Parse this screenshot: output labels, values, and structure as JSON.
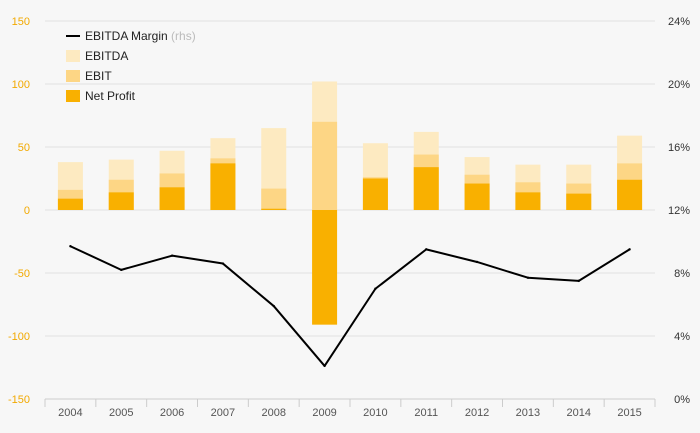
{
  "colors": {
    "background": "#f7f7f7",
    "ebitda": "#fdeac1",
    "ebit": "#fdd685",
    "net_profit": "#f9b000",
    "margin_line": "#000000",
    "left_axis_text": "#f2a900",
    "right_axis_text": "#333333",
    "x_axis_text": "#555555",
    "grid": "#e2e2e2",
    "rhs_hint": "#bbbbbb"
  },
  "legend": {
    "margin": "EBITDA Margin",
    "margin_suffix": "(rhs)",
    "ebitda": "EBITDA",
    "ebit": "EBIT",
    "net_profit": "Net Profit"
  },
  "chart_data": {
    "type": "bar",
    "categories": [
      "2004",
      "2005",
      "2006",
      "2007",
      "2008",
      "2009",
      "2010",
      "2011",
      "2012",
      "2013",
      "2014",
      "2015"
    ],
    "series": [
      {
        "name": "EBITDA",
        "kind": "bar",
        "axis": "left",
        "values": [
          38,
          40,
          47,
          57,
          65,
          102,
          53,
          62,
          42,
          36,
          36,
          59
        ]
      },
      {
        "name": "EBIT",
        "kind": "bar",
        "axis": "left",
        "values": [
          16,
          24,
          29,
          41,
          17,
          70,
          26,
          44,
          28,
          22,
          21,
          37
        ]
      },
      {
        "name": "Net Profit",
        "kind": "bar",
        "axis": "left",
        "values": [
          9,
          14,
          18,
          37,
          1,
          -91,
          25,
          34,
          21,
          14,
          13,
          24
        ]
      },
      {
        "name": "EBITDA Margin",
        "kind": "line",
        "axis": "right",
        "values": [
          9.7,
          8.2,
          9.1,
          8.6,
          5.9,
          2.1,
          7.0,
          9.5,
          8.7,
          7.7,
          7.5,
          9.5
        ]
      }
    ],
    "y_left": {
      "min": -150,
      "max": 150,
      "ticks": [
        150,
        100,
        50,
        0,
        -50,
        -100,
        -150
      ]
    },
    "y_right": {
      "min": 0,
      "max": 24,
      "ticks": [
        "24%",
        "20%",
        "16%",
        "12%",
        "8%",
        "4%",
        "0%"
      ]
    },
    "grid": true,
    "legend_position": "top-left"
  }
}
